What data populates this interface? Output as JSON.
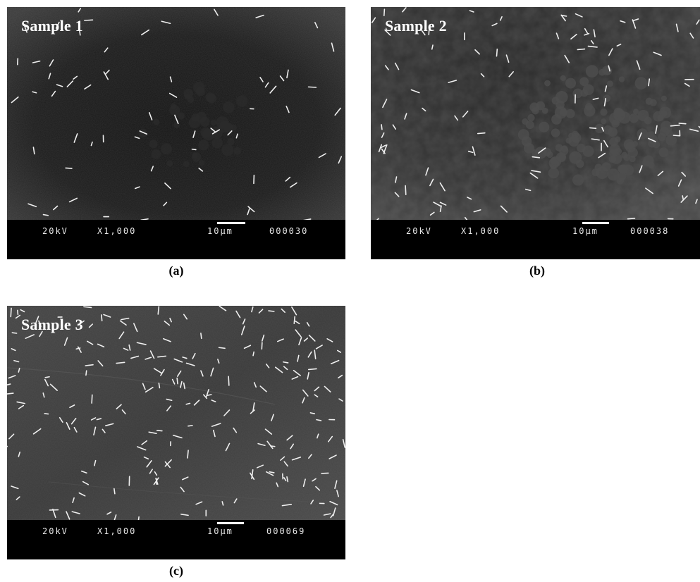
{
  "panels": [
    {
      "id": "a",
      "sample_label": "Sample 1",
      "voltage": "20kV",
      "magnification": "X1,000",
      "scale": "10µm",
      "image_number": "000030",
      "caption": "(a)"
    },
    {
      "id": "b",
      "sample_label": "Sample 2",
      "voltage": "20kV",
      "magnification": "X1,000",
      "scale": "10µm",
      "image_number": "000038",
      "caption": "(b)"
    },
    {
      "id": "c",
      "sample_label": "Sample 3",
      "voltage": "20kV",
      "magnification": "X1,000",
      "scale": "10µm",
      "image_number": "000069",
      "caption": "(c)"
    }
  ],
  "colors": {
    "background": "#ffffff",
    "databar": "#000000",
    "micrograph_dark": "#111111",
    "micrograph_mid": "#4a4a4a",
    "rods": "#f0f0f0"
  }
}
